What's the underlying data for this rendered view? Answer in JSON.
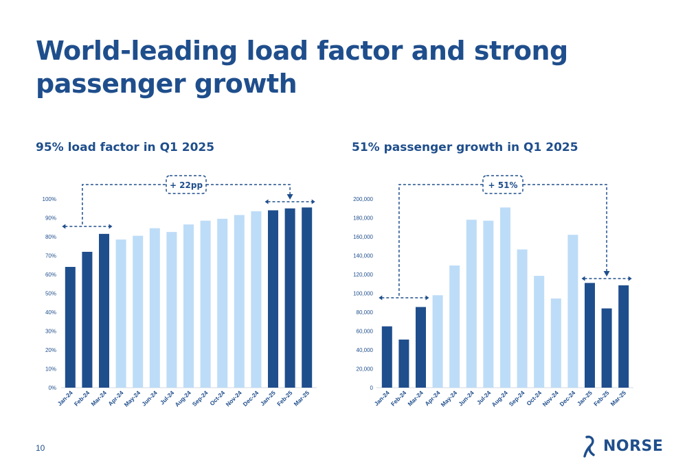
{
  "slide": {
    "title": "World-leading load factor and strong passenger growth",
    "page_number": "10",
    "logo_text": "NORSE"
  },
  "colors": {
    "dark": "#1F4E8C",
    "light": "#BDDCF7",
    "text": "#1F4E8C"
  },
  "chart_data": [
    {
      "type": "bar",
      "title": "95% load factor in Q1 2025",
      "categories": [
        "Jan-24",
        "Feb-24",
        "Mar-24",
        "Apr-24",
        "May-24",
        "Jun-24",
        "Jul-24",
        "Aug-24",
        "Sep-24",
        "Oct-24",
        "Nov-24",
        "Dec-24",
        "Jan-25",
        "Feb-25",
        "Mar-25"
      ],
      "values": [
        0.64,
        0.72,
        0.815,
        0.785,
        0.805,
        0.845,
        0.825,
        0.865,
        0.885,
        0.895,
        0.915,
        0.935,
        0.94,
        0.95,
        0.955
      ],
      "highlight": [
        true,
        true,
        true,
        false,
        false,
        false,
        false,
        false,
        false,
        false,
        false,
        false,
        true,
        true,
        true
      ],
      "ylim": [
        0,
        1
      ],
      "yticks": [
        0,
        0.1,
        0.2,
        0.3,
        0.4,
        0.5,
        0.6,
        0.7,
        0.8,
        0.9,
        1.0
      ],
      "ytick_labels": [
        "0%",
        "10%",
        "20%",
        "30%",
        "40%",
        "50%",
        "60%",
        "70%",
        "80%",
        "90%",
        "100%"
      ],
      "xlabel": "",
      "ylabel": "",
      "grid": false,
      "annotation": {
        "text": "+ 22pp",
        "from_group": [
          0,
          2
        ],
        "to_group": [
          12,
          14
        ]
      }
    },
    {
      "type": "bar",
      "title": "51% passenger growth in Q1 2025",
      "categories": [
        "Jan-24",
        "Feb-24",
        "Mar-24",
        "Apr-24",
        "May-24",
        "Jun-24",
        "Jul-24",
        "Aug-24",
        "Sep-24",
        "Oct-24",
        "Nov-24",
        "Dec-24",
        "Jan-25",
        "Feb-25",
        "Mar-25"
      ],
      "values": [
        65000,
        51000,
        85500,
        98000,
        129500,
        178000,
        177000,
        191000,
        146500,
        118500,
        94500,
        162000,
        111000,
        84000,
        108500
      ],
      "highlight": [
        true,
        true,
        true,
        false,
        false,
        false,
        false,
        false,
        false,
        false,
        false,
        false,
        true,
        true,
        true
      ],
      "ylim": [
        0,
        200000
      ],
      "yticks": [
        0,
        20000,
        40000,
        60000,
        80000,
        100000,
        120000,
        140000,
        160000,
        180000,
        200000
      ],
      "ytick_labels": [
        "0",
        "20,000",
        "40,000",
        "60,000",
        "80,000",
        "100,000",
        "120,000",
        "140,000",
        "160,000",
        "180,000",
        "200,000"
      ],
      "xlabel": "",
      "ylabel": "",
      "grid": false,
      "annotation": {
        "text": "+ 51%",
        "from_group": [
          0,
          2
        ],
        "to_group": [
          12,
          14
        ]
      }
    }
  ]
}
